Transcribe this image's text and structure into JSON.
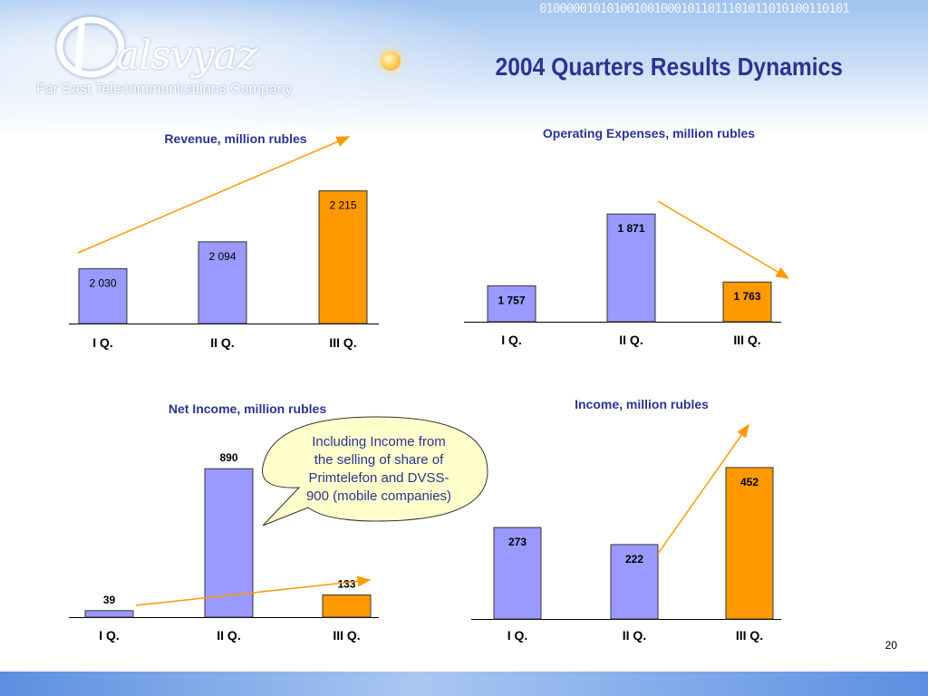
{
  "header": {
    "logo_name": "alsvyaz",
    "logo_tagline": "Far East Telecommunications Company",
    "title": "2004 Quarters Results Dynamics",
    "binary_text": "0100000101010010010001011011101011010100110101"
  },
  "page_number": "20",
  "callout": {
    "lines": [
      "Including Income from",
      "the selling of share of",
      "Primtelefon and DVSS-",
      "900 (mobile companies)"
    ]
  },
  "colors": {
    "bar_default": "#9999ff",
    "bar_highlight": "#ff9900",
    "trend": "#ff9900",
    "title": "#2a3490"
  },
  "chart_data": [
    {
      "type": "bar",
      "title": "Revenue, million rubles",
      "categories": [
        "I Q.",
        "II Q.",
        "III Q."
      ],
      "values": [
        2030,
        2094,
        2215
      ],
      "value_labels": [
        "2 030",
        "2 094",
        "2 215"
      ],
      "bar_colors": [
        "#9999ff",
        "#9999ff",
        "#ff9900"
      ],
      "label_bold": false,
      "trend": "up",
      "ylim": [
        1900,
        2240
      ]
    },
    {
      "type": "bar",
      "title": "Operating Expenses, million rubles",
      "categories": [
        "I Q.",
        "II Q.",
        "III Q."
      ],
      "values": [
        1757,
        1871,
        1763
      ],
      "value_labels": [
        "1 757",
        "1 871",
        "1 763"
      ],
      "bar_colors": [
        "#9999ff",
        "#9999ff",
        "#ff9900"
      ],
      "label_bold": true,
      "trend": "down",
      "ylim": [
        1700,
        1900
      ]
    },
    {
      "type": "bar",
      "title": "Net Income, million rubles",
      "categories": [
        "I Q.",
        "II Q.",
        "III Q."
      ],
      "values": [
        39,
        890,
        133
      ],
      "value_labels": [
        "39",
        "890",
        "133"
      ],
      "bar_colors": [
        "#9999ff",
        "#9999ff",
        "#ff9900"
      ],
      "label_bold": true,
      "trend": "up",
      "ylim": [
        0,
        1000
      ]
    },
    {
      "type": "bar",
      "title": "Income, million rubles",
      "categories": [
        "I Q.",
        "II Q.",
        "III Q."
      ],
      "values": [
        273,
        222,
        452
      ],
      "value_labels": [
        "273",
        "222",
        "452"
      ],
      "bar_colors": [
        "#9999ff",
        "#9999ff",
        "#ff9900"
      ],
      "label_bold": true,
      "trend": "up",
      "ylim": [
        0,
        495
      ]
    }
  ]
}
